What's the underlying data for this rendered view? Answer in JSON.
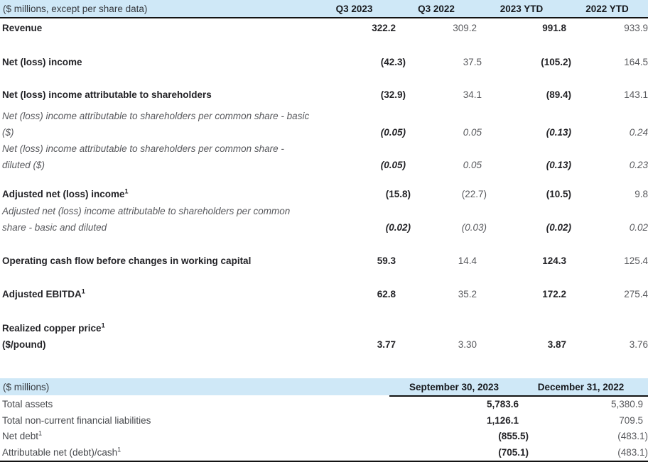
{
  "colors": {
    "header_bg": "#cfe8f7",
    "rule": "#131313",
    "text_dark": "#232327",
    "text_gray": "#58595d"
  },
  "table1": {
    "header": {
      "label": "($ millions, except per share data)",
      "columns": [
        "Q3 2023",
        "Q3 2022",
        "2023 YTD",
        "2022 YTD"
      ]
    },
    "rows": [
      {
        "style": "bold",
        "lines": [
          {
            "text": "Revenue",
            "values": [
              "322.2",
              "309.2",
              "991.8",
              "933.9"
            ]
          }
        ]
      },
      {
        "style": "bold",
        "lines": [
          {
            "text": "Net (loss) income",
            "values": [
              "(42.3)",
              "37.5",
              "(105.2)",
              "164.5"
            ]
          }
        ]
      },
      {
        "style": "bold",
        "lines": [
          {
            "text": "Net (loss) income attributable to shareholders",
            "values": [
              "(32.9)",
              "34.1",
              "(89.4)",
              "143.1"
            ]
          }
        ]
      },
      {
        "style": "italic",
        "lines": [
          {
            "text": "Net (loss) income attributable to shareholders per common share - basic"
          },
          {
            "text": "($)",
            "values": [
              "(0.05)",
              "0.05",
              "(0.13)",
              "0.24"
            ]
          }
        ]
      },
      {
        "style": "italic",
        "lines": [
          {
            "text": "Net (loss) income attributable to shareholders per common share -"
          },
          {
            "text": "diluted ($)",
            "values": [
              "(0.05)",
              "0.05",
              "(0.13)",
              "0.23"
            ]
          }
        ]
      },
      {
        "style": "bold",
        "lines": [
          {
            "text": "Adjusted net (loss) income",
            "sup": "1",
            "values": [
              "(15.8)",
              "(22.7)",
              "(10.5)",
              "9.8"
            ]
          }
        ]
      },
      {
        "style": "italic",
        "lines": [
          {
            "text": "Adjusted net (loss) income attributable to shareholders per common"
          },
          {
            "text": "share - basic and diluted",
            "values": [
              "(0.02)",
              "(0.03)",
              "(0.02)",
              "0.02"
            ]
          }
        ]
      },
      {
        "style": "bold",
        "lines": [
          {
            "text": "Operating cash flow before changes in working capital",
            "values": [
              "59.3",
              "14.4",
              "124.3",
              "125.4"
            ]
          }
        ]
      },
      {
        "style": "bold",
        "lines": [
          {
            "text": "Adjusted EBITDA",
            "sup": "1",
            "values": [
              "62.8",
              "35.2",
              "172.2",
              "275.4"
            ]
          }
        ]
      },
      {
        "style": "bold",
        "lines": [
          {
            "text": "Realized copper price",
            "sup": "1"
          },
          {
            "text": "($/pound)",
            "values": [
              "3.77",
              "3.30",
              "3.87",
              "3.76"
            ]
          }
        ]
      }
    ]
  },
  "table2": {
    "header": {
      "label": "($ millions)",
      "columns": [
        "September 30, 2023",
        "December 31, 2022"
      ]
    },
    "rows": [
      {
        "label": "Total assets",
        "values": [
          "5,783.6",
          "5,380.9"
        ]
      },
      {
        "label": "Total non-current financial liabilities",
        "values": [
          "1,126.1",
          "709.5"
        ]
      },
      {
        "label": "Net debt",
        "sup": "1",
        "values": [
          "(855.5)",
          "(483.1)"
        ]
      },
      {
        "label": "Attributable net (debt)/cash",
        "sup": "1",
        "values": [
          "(705.1)",
          "(483.1)"
        ]
      }
    ]
  }
}
